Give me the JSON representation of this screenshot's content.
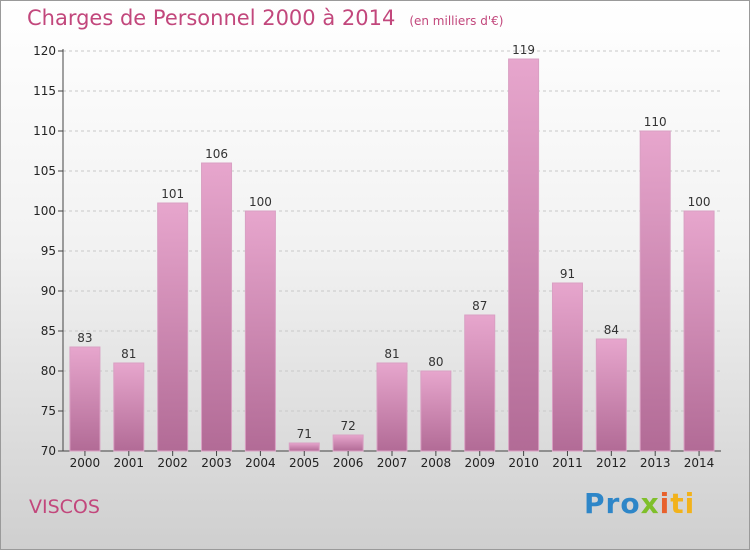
{
  "title": "Charges de Personnel 2000 à 2014",
  "unit": "(en milliers d'€)",
  "place": "VISCOS",
  "logo": {
    "part1": "Pro",
    "part2": "x",
    "part3": "i",
    "part4": "ti"
  },
  "colors": {
    "title": "#c2477c",
    "bar_top": "#e7a6cd",
    "bar_bottom": "#b26b96"
  },
  "chart_data": {
    "type": "bar",
    "categories": [
      "2000",
      "2001",
      "2002",
      "2003",
      "2004",
      "2005",
      "2006",
      "2007",
      "2008",
      "2009",
      "2010",
      "2011",
      "2012",
      "2013",
      "2014"
    ],
    "values": [
      83,
      81,
      101,
      106,
      100,
      71,
      72,
      81,
      80,
      87,
      119,
      91,
      84,
      110,
      100
    ],
    "title": "Charges de Personnel 2000 à 2014",
    "ylim": [
      70,
      120
    ],
    "yticks": [
      70,
      75,
      80,
      85,
      90,
      95,
      100,
      105,
      110,
      115,
      120
    ],
    "grid": true
  }
}
